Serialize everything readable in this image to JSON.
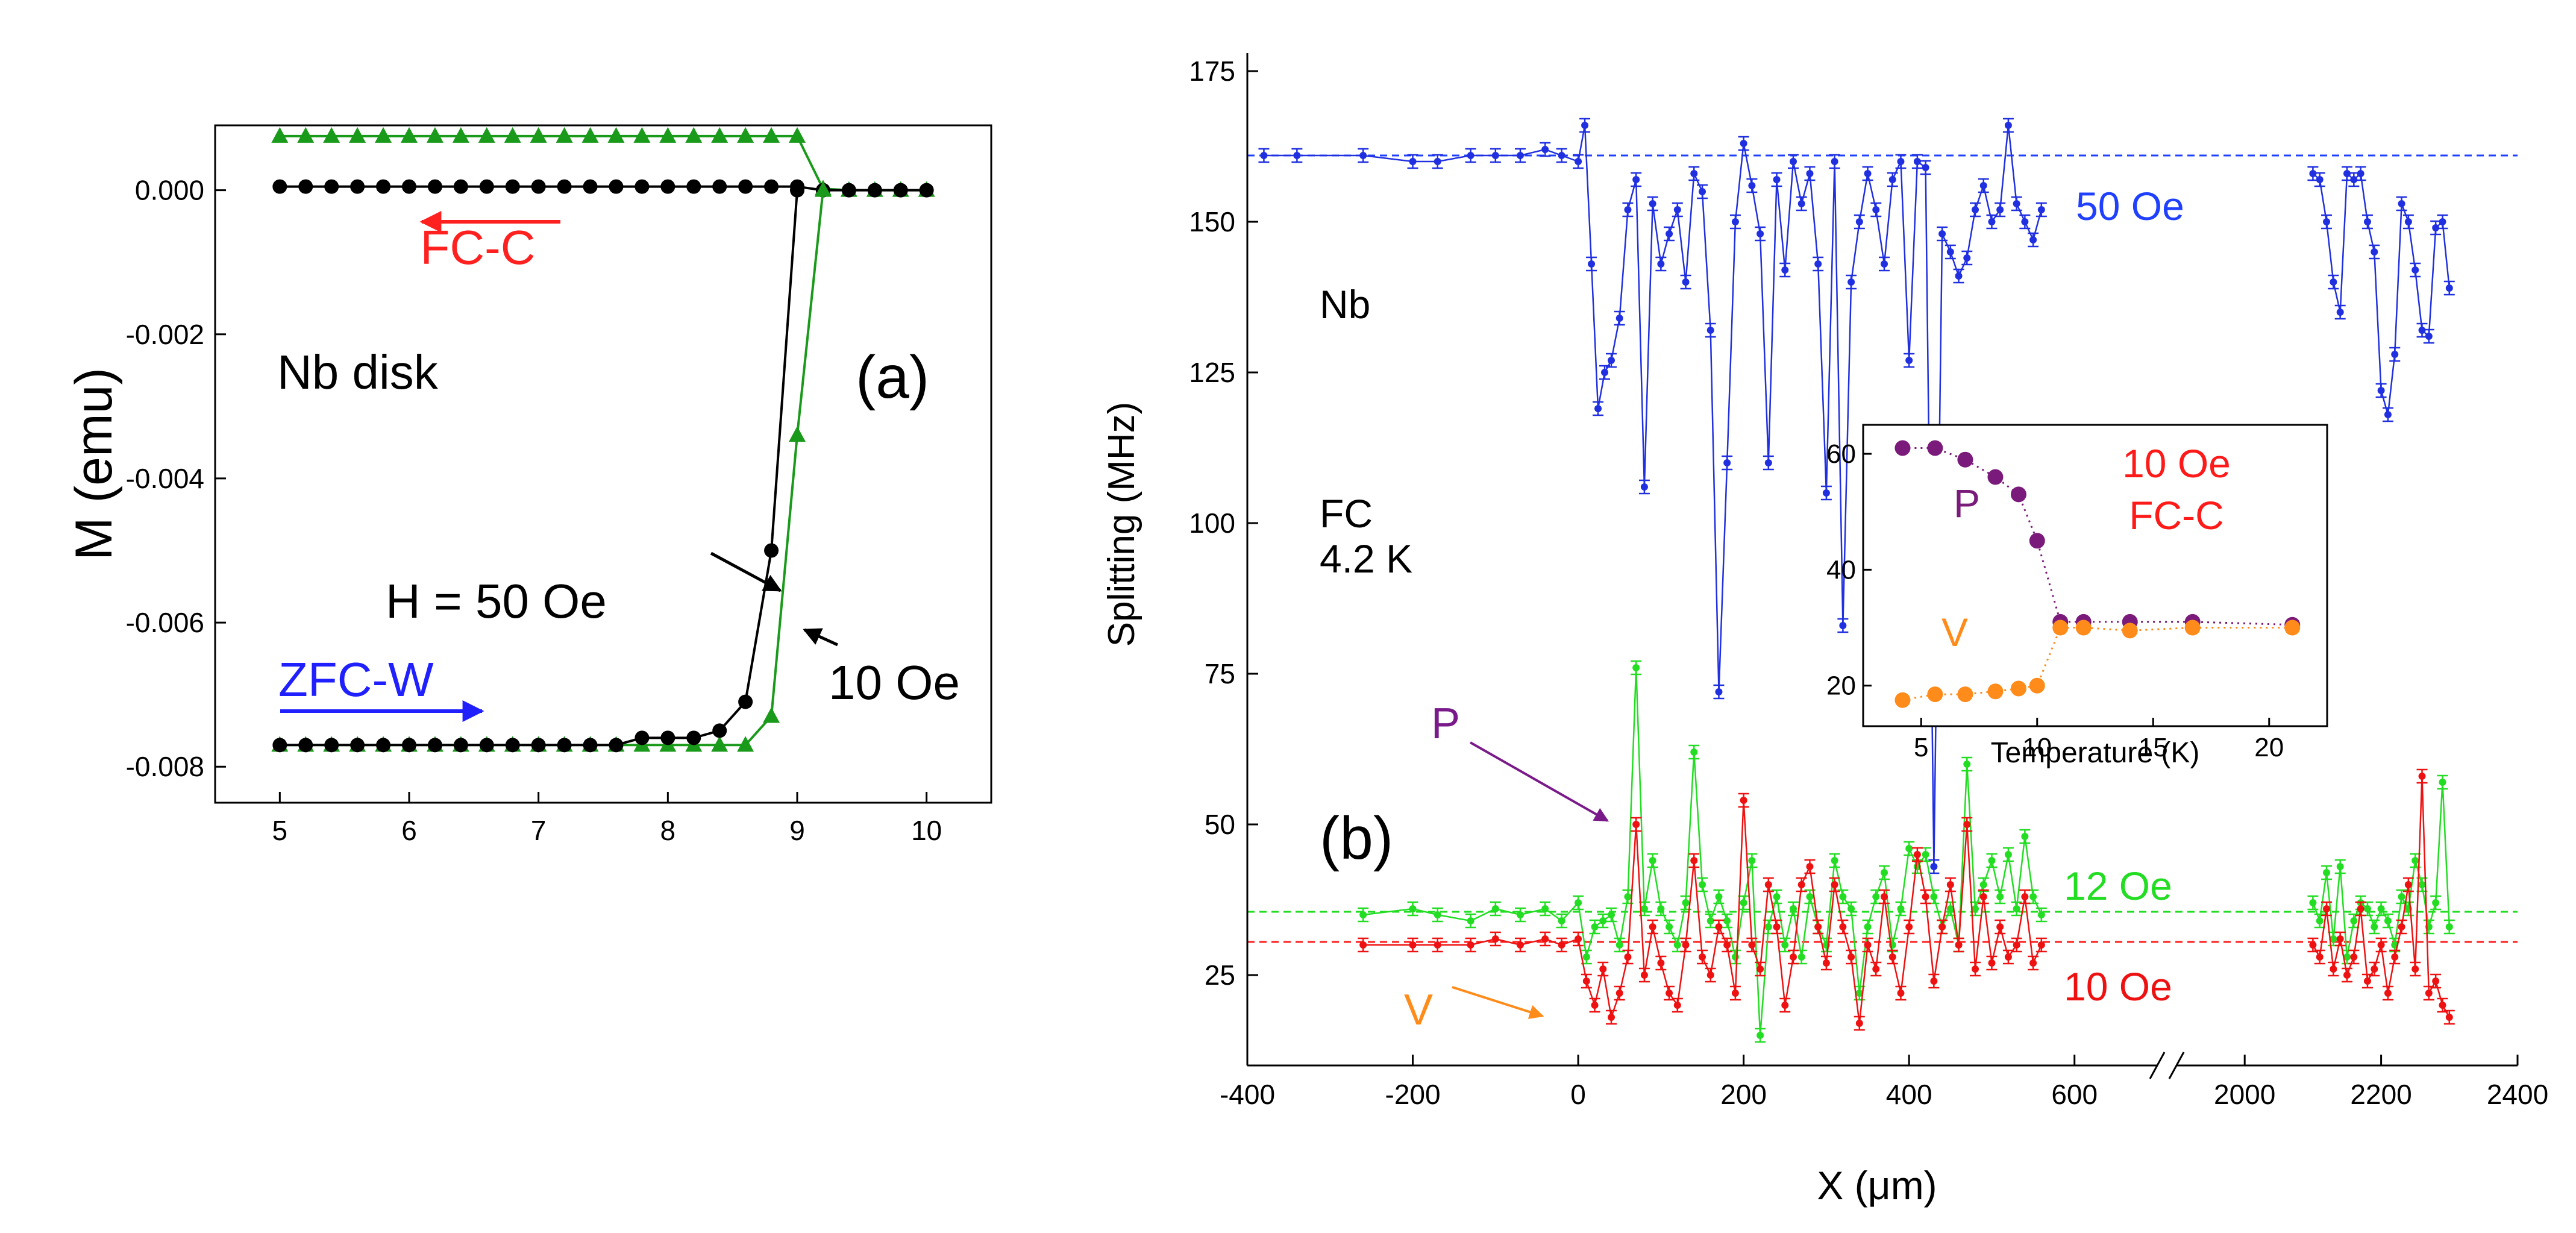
{
  "chart_data": [
    {
      "id": "a",
      "type": "line",
      "panel_label": "(a)",
      "ylabel": "M (emu)",
      "xlabel": "",
      "xlim": [
        4.5,
        10.5
      ],
      "ylim": [
        -0.0085,
        0.0009
      ],
      "xticks": [
        "5",
        "6",
        "7",
        "8",
        "9",
        "10"
      ],
      "yticks": [
        "0.000",
        "-0.002",
        "-0.004",
        "-0.006",
        "-0.008"
      ],
      "grid": false,
      "series": [
        {
          "name": "FC-C 10 Oe",
          "color": "#1a9a1a",
          "marker": "triangle",
          "x": [
            5,
            5.2,
            5.4,
            5.6,
            5.8,
            6,
            6.2,
            6.4,
            6.6,
            6.8,
            7,
            7.2,
            7.4,
            7.6,
            7.8,
            8,
            8.2,
            8.4,
            8.6,
            8.8,
            9,
            9.2,
            9.4,
            9.6,
            9.8,
            10
          ],
          "y": [
            0.00075,
            0.00075,
            0.00075,
            0.00075,
            0.00075,
            0.00075,
            0.00075,
            0.00075,
            0.00075,
            0.00075,
            0.00075,
            0.00075,
            0.00075,
            0.00075,
            0.00075,
            0.00075,
            0.00075,
            0.00075,
            0.00075,
            0.00075,
            0.00075,
            2e-05,
            0.0,
            0.0,
            0.0,
            0.0
          ]
        },
        {
          "name": "FC-C 50 Oe",
          "color": "#000000",
          "marker": "circle",
          "x": [
            5,
            5.2,
            5.4,
            5.6,
            5.8,
            6,
            6.2,
            6.4,
            6.6,
            6.8,
            7,
            7.2,
            7.4,
            7.6,
            7.8,
            8,
            8.2,
            8.4,
            8.6,
            8.8,
            9,
            9.2,
            9.4,
            9.6,
            9.8,
            10
          ],
          "y": [
            5e-05,
            5e-05,
            5e-05,
            5e-05,
            5e-05,
            5e-05,
            5e-05,
            5e-05,
            5e-05,
            5e-05,
            5e-05,
            5e-05,
            5e-05,
            5e-05,
            5e-05,
            5e-05,
            5e-05,
            5e-05,
            5e-05,
            5e-05,
            5e-05,
            0.0,
            0.0,
            0.0,
            0.0,
            0.0
          ]
        },
        {
          "name": "ZFC-W 10 Oe",
          "color": "#1a9a1a",
          "marker": "triangle",
          "x": [
            5,
            5.2,
            5.4,
            5.6,
            5.8,
            6,
            6.2,
            6.4,
            6.6,
            6.8,
            7,
            7.2,
            7.4,
            7.6,
            7.8,
            8,
            8.2,
            8.4,
            8.6,
            8.8,
            9,
            9.2
          ],
          "y": [
            -0.0077,
            -0.0077,
            -0.0077,
            -0.0077,
            -0.0077,
            -0.0077,
            -0.0077,
            -0.0077,
            -0.0077,
            -0.0077,
            -0.0077,
            -0.0077,
            -0.0077,
            -0.0077,
            -0.0077,
            -0.0077,
            -0.0077,
            -0.0077,
            -0.0077,
            -0.0073,
            -0.0034,
            0.0
          ]
        },
        {
          "name": "ZFC-W 50 Oe",
          "color": "#000000",
          "marker": "circle",
          "x": [
            5,
            5.2,
            5.4,
            5.6,
            5.8,
            6,
            6.2,
            6.4,
            6.6,
            6.8,
            7,
            7.2,
            7.4,
            7.6,
            7.8,
            8,
            8.2,
            8.4,
            8.6,
            8.8,
            9
          ],
          "y": [
            -0.0077,
            -0.0077,
            -0.0077,
            -0.0077,
            -0.0077,
            -0.0077,
            -0.0077,
            -0.0077,
            -0.0077,
            -0.0077,
            -0.0077,
            -0.0077,
            -0.0077,
            -0.0077,
            -0.0076,
            -0.0076,
            -0.0076,
            -0.0075,
            -0.0071,
            -0.005,
            0.0
          ]
        }
      ],
      "annotations": {
        "fcc": "FC-C",
        "zfcw": "ZFC-W",
        "sample": "Nb disk",
        "h50": "H = 50 Oe",
        "h10": "10 Oe"
      },
      "colors": {
        "fcc_arrow": "#ff2020",
        "zfcw_arrow": "#2020ff"
      }
    },
    {
      "id": "b",
      "type": "line",
      "panel_label": "(b)",
      "ylabel": "Splitting (MHz)",
      "xlabel": "X (μm)",
      "ylim": [
        10,
        178
      ],
      "axis_break": {
        "from": 700,
        "to": 1900
      },
      "xticks": [
        "-400",
        "-200",
        "0",
        "200",
        "400",
        "600",
        "2000",
        "2200",
        "2400"
      ],
      "yticks": [
        "25",
        "50",
        "75",
        "100",
        "125",
        "150",
        "175"
      ],
      "grid": false,
      "reference_lines": [
        {
          "label": "50 Oe",
          "y": 161,
          "color": "#2040ff"
        },
        {
          "label": "12 Oe",
          "y": 35.5,
          "color": "#22dd22"
        },
        {
          "label": "10 Oe",
          "y": 30.5,
          "color": "#ff2020"
        }
      ],
      "series": [
        {
          "name": "50 Oe",
          "color": "#2030e0",
          "x": [
            -380,
            -340,
            -260,
            -200,
            -170,
            -130,
            -100,
            -70,
            -40,
            -20,
            0,
            8,
            16,
            24,
            32,
            40,
            50,
            60,
            70,
            80,
            90,
            100,
            110,
            120,
            130,
            140,
            150,
            160,
            170,
            180,
            190,
            200,
            210,
            220,
            230,
            240,
            250,
            260,
            270,
            280,
            290,
            300,
            310,
            320,
            330,
            340,
            350,
            360,
            370,
            380,
            390,
            400,
            410,
            420,
            430,
            440,
            450,
            460,
            470,
            480,
            490,
            500,
            510,
            520,
            530,
            540,
            550,
            560,
            2100,
            2110,
            2120,
            2130,
            2140,
            2150,
            2160,
            2170,
            2180,
            2190,
            2200,
            2210,
            2220,
            2230,
            2240,
            2250,
            2260,
            2270,
            2280,
            2290,
            2300
          ],
          "y": [
            161,
            161,
            161,
            160,
            160,
            161,
            161,
            161,
            162,
            161,
            160,
            166,
            143,
            119,
            125,
            127,
            134,
            152,
            157,
            106,
            153,
            143,
            148,
            152,
            140,
            158,
            155,
            132,
            72,
            110,
            150,
            163,
            156,
            148,
            110,
            157,
            142,
            160,
            153,
            158,
            143,
            105,
            160,
            83,
            140,
            150,
            158,
            152,
            143,
            157,
            160,
            127,
            160,
            159,
            43,
            148,
            145,
            141,
            144,
            152,
            156,
            150,
            152,
            166,
            153,
            150,
            147,
            152,
            158,
            157,
            150,
            140,
            135,
            158,
            157,
            158,
            150,
            145,
            122,
            118,
            128,
            153,
            150,
            142,
            132,
            131,
            149,
            150,
            139
          ]
        },
        {
          "name": "12 Oe",
          "color": "#22dd22",
          "x": [
            -260,
            -200,
            -170,
            -130,
            -100,
            -70,
            -40,
            -20,
            0,
            10,
            20,
            30,
            40,
            50,
            60,
            70,
            80,
            90,
            100,
            110,
            120,
            130,
            140,
            150,
            160,
            170,
            180,
            190,
            200,
            210,
            220,
            230,
            240,
            250,
            260,
            270,
            280,
            290,
            300,
            310,
            320,
            330,
            340,
            350,
            360,
            370,
            380,
            390,
            400,
            410,
            420,
            430,
            440,
            450,
            460,
            470,
            480,
            490,
            500,
            510,
            520,
            530,
            540,
            550,
            560,
            2100,
            2110,
            2120,
            2130,
            2140,
            2150,
            2160,
            2170,
            2180,
            2190,
            2200,
            2210,
            2220,
            2230,
            2240,
            2250,
            2260,
            2270,
            2280,
            2290,
            2300
          ],
          "y": [
            35,
            36,
            35,
            34,
            36,
            35,
            36,
            34,
            37,
            28,
            33,
            34,
            35,
            30,
            38,
            76,
            36,
            44,
            36,
            33,
            30,
            37,
            62,
            40,
            34,
            38,
            34,
            28,
            37,
            44,
            15,
            33,
            38,
            30,
            36,
            28,
            38,
            33,
            30,
            44,
            38,
            36,
            22,
            33,
            38,
            42,
            30,
            36,
            46,
            43,
            45,
            38,
            33,
            36,
            30,
            60,
            36,
            40,
            44,
            38,
            45,
            36,
            48,
            38,
            35,
            37,
            34,
            42,
            31,
            43,
            28,
            34,
            37,
            36,
            33,
            36,
            34,
            30,
            38,
            36,
            44,
            40,
            33,
            37,
            57,
            33
          ]
        },
        {
          "name": "10 Oe",
          "color": "#ee1111",
          "x": [
            -260,
            -200,
            -170,
            -130,
            -100,
            -70,
            -40,
            -20,
            0,
            10,
            20,
            30,
            40,
            50,
            60,
            70,
            80,
            90,
            100,
            110,
            120,
            130,
            140,
            150,
            160,
            170,
            180,
            190,
            200,
            210,
            220,
            230,
            240,
            250,
            260,
            270,
            280,
            290,
            300,
            310,
            320,
            330,
            340,
            350,
            360,
            370,
            380,
            390,
            400,
            410,
            420,
            430,
            440,
            450,
            460,
            470,
            480,
            490,
            500,
            510,
            520,
            530,
            540,
            550,
            560,
            2100,
            2110,
            2120,
            2130,
            2140,
            2150,
            2160,
            2170,
            2180,
            2190,
            2200,
            2210,
            2220,
            2230,
            2240,
            2250,
            2260,
            2270,
            2280,
            2290,
            2300
          ],
          "y": [
            30,
            30,
            30,
            30,
            31,
            30,
            31,
            30,
            31,
            24,
            20,
            26,
            18,
            22,
            28,
            50,
            25,
            33,
            27,
            22,
            20,
            30,
            44,
            28,
            25,
            33,
            30,
            22,
            54,
            30,
            26,
            40,
            33,
            20,
            28,
            40,
            43,
            33,
            27,
            40,
            33,
            28,
            17,
            30,
            26,
            38,
            28,
            22,
            33,
            45,
            38,
            24,
            33,
            40,
            30,
            50,
            26,
            38,
            27,
            33,
            28,
            30,
            38,
            27,
            30,
            30,
            28,
            36,
            26,
            31,
            25,
            28,
            36,
            24,
            26,
            30,
            22,
            28,
            33,
            40,
            26,
            58,
            22,
            24,
            20,
            18
          ]
        }
      ],
      "annotations": {
        "sample": "Nb",
        "condition_1": "FC",
        "condition_2": "4.2 K",
        "p": "P",
        "v": "V"
      },
      "colors": {
        "p_marker": "#7a1a8a",
        "v_marker": "#ff8c1a"
      }
    },
    {
      "id": "b-inset",
      "type": "scatter",
      "xlabel": "Temperature (K)",
      "ylabel": "",
      "xlim": [
        2.5,
        22.5
      ],
      "ylim": [
        13,
        65
      ],
      "xticks": [
        "5",
        "10",
        "15",
        "20"
      ],
      "yticks": [
        "20",
        "40",
        "60"
      ],
      "grid": false,
      "series": [
        {
          "name": "P",
          "color": "#7a1a7a",
          "x": [
            4.2,
            5.6,
            6.9,
            8.2,
            9.2,
            10,
            11,
            12,
            14,
            16.7,
            21
          ],
          "y": [
            61,
            61,
            59,
            56,
            53,
            45,
            31,
            31,
            31,
            31,
            30.5
          ]
        },
        {
          "name": "V",
          "color": "#ff8c1a",
          "x": [
            4.2,
            5.6,
            6.9,
            8.2,
            9.2,
            10,
            11,
            12,
            14,
            16.7,
            21
          ],
          "y": [
            17.5,
            18.5,
            18.5,
            19,
            19.5,
            20,
            30,
            30,
            29.5,
            30,
            30
          ]
        }
      ],
      "annotations": {
        "field": "10 Oe",
        "protocol": "FC-C",
        "p": "P",
        "v": "V"
      },
      "colors": {
        "field": "#ff1a1a"
      }
    }
  ]
}
